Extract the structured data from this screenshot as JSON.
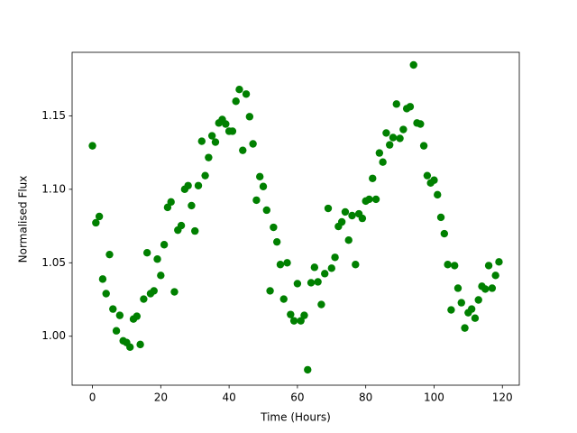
{
  "chart_data": {
    "type": "scatter",
    "xlabel": "Time (Hours)",
    "ylabel": "Normalised Flux",
    "color": "#008000",
    "xlim": [
      -5.95,
      124.95
    ],
    "ylim": [
      0.9667,
      1.1932
    ],
    "xticks": [
      0,
      20,
      40,
      60,
      80,
      100,
      120
    ],
    "yticks": [
      {
        "value": 1,
        "label": "1.00"
      },
      1.05,
      {
        "value": 1.1,
        "label": "1.10"
      },
      1.15
    ],
    "x": [
      0,
      1,
      2,
      3,
      4,
      5,
      6,
      7,
      8,
      9,
      10,
      11,
      12,
      13,
      14,
      15,
      16,
      17,
      18,
      19,
      20,
      21,
      22,
      23,
      24,
      25,
      26,
      27,
      28,
      29,
      30,
      31,
      32,
      33,
      34,
      35,
      36,
      37,
      38,
      39,
      40,
      41,
      42,
      43,
      44,
      45,
      46,
      47,
      48,
      49,
      50,
      51,
      52,
      53,
      54,
      55,
      56,
      57,
      58,
      59,
      60,
      61,
      62,
      63,
      64,
      65,
      66,
      67,
      68,
      69,
      70,
      71,
      72,
      73,
      74,
      75,
      76,
      77,
      78,
      79,
      80,
      81,
      82,
      83,
      84,
      85,
      86,
      87,
      88,
      89,
      90,
      91,
      92,
      93,
      94,
      95,
      96,
      97,
      98,
      99,
      100,
      101,
      102,
      103,
      104,
      105,
      106,
      107,
      108,
      109,
      110,
      111,
      112,
      113,
      114,
      115,
      116,
      117,
      118,
      119
    ],
    "values": [
      1.1296,
      1.0772,
      1.0815,
      1.0389,
      1.029,
      1.0556,
      1.0185,
      1.0037,
      1.0142,
      0.9969,
      0.9957,
      0.9926,
      1.0117,
      1.0136,
      0.9944,
      1.0253,
      1.0568,
      1.029,
      1.0309,
      1.0525,
      1.0414,
      1.0623,
      1.0877,
      1.0914,
      1.0302,
      1.0722,
      1.0753,
      1.1,
      1.1025,
      1.0889,
      1.0716,
      1.1025,
      1.1327,
      1.1093,
      1.1216,
      1.1364,
      1.1321,
      1.1451,
      1.1475,
      1.1444,
      1.1395,
      1.1395,
      1.1599,
      1.1679,
      1.1265,
      1.1648,
      1.1494,
      1.1309,
      1.0926,
      1.1086,
      1.1019,
      1.0858,
      1.0309,
      1.0741,
      1.0642,
      1.0488,
      1.0253,
      1.05,
      1.0148,
      1.0105,
      1.0358,
      1.0105,
      1.0142,
      0.9772,
      1.0364,
      1.0469,
      1.037,
      1.0216,
      1.0426,
      1.087,
      1.0463,
      1.0537,
      1.0747,
      1.0778,
      1.0846,
      1.0654,
      1.0821,
      1.0488,
      1.0833,
      1.0802,
      1.092,
      1.0932,
      1.1074,
      1.0932,
      1.1247,
      1.1185,
      1.1383,
      1.1302,
      1.1352,
      1.158,
      1.1346,
      1.1407,
      1.1549,
      1.1562,
      1.1846,
      1.1451,
      1.1444,
      1.1296,
      1.1093,
      1.1043,
      1.1062,
      1.0963,
      1.0809,
      1.0698,
      1.0488,
      1.0179,
      1.0481,
      1.0327,
      1.0228,
      1.0056,
      1.016,
      1.0185,
      1.0123,
      1.0247,
      1.034,
      1.0321,
      1.0481,
      1.0327,
      1.0414,
      1.0506
    ]
  }
}
